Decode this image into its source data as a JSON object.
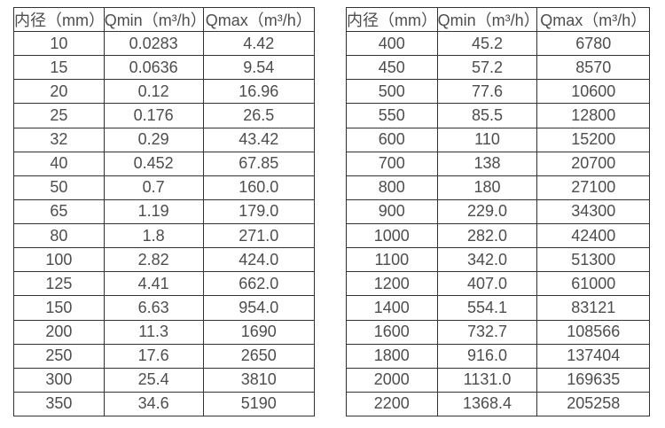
{
  "page": {
    "background_color": "#ffffff",
    "border_color": "#333333",
    "text_color": "#4d4d4d"
  },
  "chart_data": [
    {
      "type": "table",
      "title": "",
      "columns": [
        "内径（mm）",
        "Qmin（m³/h）",
        "Qmax（m³/h）"
      ],
      "rows": [
        [
          "10",
          "0.0283",
          "4.42"
        ],
        [
          "15",
          "0.0636",
          "9.54"
        ],
        [
          "20",
          "0.12",
          "16.96"
        ],
        [
          "25",
          "0.176",
          "26.5"
        ],
        [
          "32",
          "0.29",
          "43.42"
        ],
        [
          "40",
          "0.452",
          "67.85"
        ],
        [
          "50",
          "0.7",
          "160.0"
        ],
        [
          "65",
          "1.19",
          "179.0"
        ],
        [
          "80",
          "1.8",
          "271.0"
        ],
        [
          "100",
          "2.82",
          "424.0"
        ],
        [
          "125",
          "4.41",
          "662.0"
        ],
        [
          "150",
          "6.63",
          "954.0"
        ],
        [
          "200",
          "11.3",
          "1690"
        ],
        [
          "250",
          "17.6",
          "2650"
        ],
        [
          "300",
          "25.4",
          "3810"
        ],
        [
          "350",
          "34.6",
          "5190"
        ]
      ]
    },
    {
      "type": "table",
      "title": "",
      "columns": [
        "内径（mm）",
        "Qmin（m³/h）",
        "Qmax（m³/h）"
      ],
      "rows": [
        [
          "400",
          "45.2",
          "6780"
        ],
        [
          "450",
          "57.2",
          "8570"
        ],
        [
          "500",
          "77.6",
          "10600"
        ],
        [
          "550",
          "85.5",
          "12800"
        ],
        [
          "600",
          "110",
          "15200"
        ],
        [
          "700",
          "138",
          "20700"
        ],
        [
          "800",
          "180",
          "27100"
        ],
        [
          "900",
          "229.0",
          "34300"
        ],
        [
          "1000",
          "282.0",
          "42400"
        ],
        [
          "1100",
          "342.0",
          "51300"
        ],
        [
          "1200",
          "407.0",
          "61000"
        ],
        [
          "1400",
          "554.1",
          "83121"
        ],
        [
          "1600",
          "732.7",
          "108566"
        ],
        [
          "1800",
          "916.0",
          "137404"
        ],
        [
          "2000",
          "1131.0",
          "169635"
        ],
        [
          "2200",
          "1368.4",
          "205258"
        ]
      ]
    }
  ]
}
